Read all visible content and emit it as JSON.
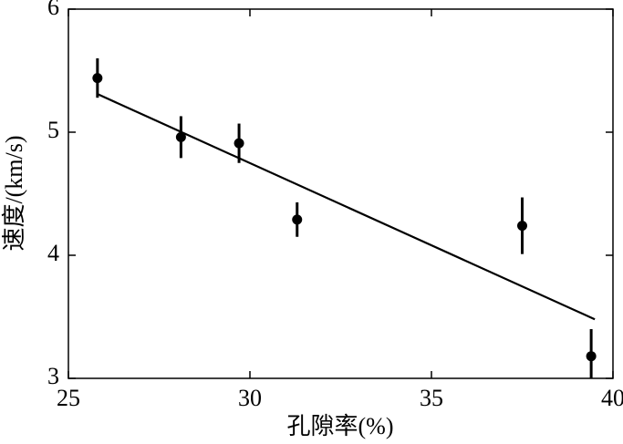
{
  "chart_data": {
    "type": "scatter",
    "x_label": "孔隙率(%)",
    "y_label": "速度/(km/s)",
    "x": [
      25.8,
      28.1,
      29.7,
      31.3,
      37.5,
      39.4
    ],
    "values": [
      5.44,
      4.96,
      4.91,
      4.29,
      4.24,
      3.18
    ],
    "errors": [
      0.16,
      0.17,
      0.16,
      0.14,
      0.23,
      0.22
    ],
    "color": "#000000",
    "fit": {
      "x": [
        25.8,
        39.5
      ],
      "y": [
        5.31,
        3.48
      ]
    },
    "xlim": [
      25,
      40
    ],
    "xticks": [
      25,
      30,
      35,
      40
    ],
    "ylim": [
      3,
      6
    ],
    "yticks": [
      3,
      4,
      5,
      6
    ],
    "grid": false
  }
}
